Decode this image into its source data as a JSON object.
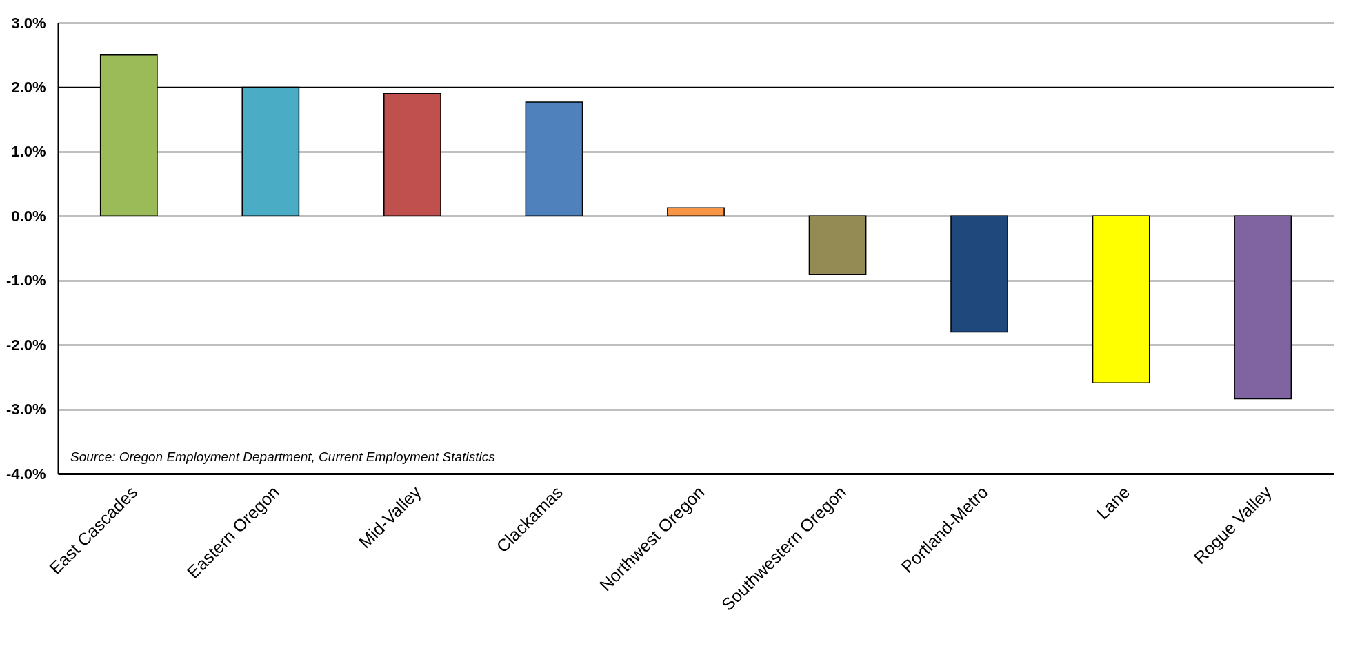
{
  "chart_data": {
    "type": "bar",
    "categories": [
      "East Cascades",
      "Eastern Oregon",
      "Mid-Valley",
      "Clackamas",
      "Northwest Oregon",
      "Southwestern Oregon",
      "Portland-Metro",
      "Lane",
      "Rogue Valley"
    ],
    "values": [
      2.5,
      2.0,
      1.9,
      1.77,
      0.13,
      -0.91,
      -1.8,
      -2.59,
      -2.84
    ],
    "colors": [
      "#9bbb59",
      "#4bacc6",
      "#c0504d",
      "#4f81bd",
      "#f79646",
      "#948a54",
      "#1f497d",
      "#ffff00",
      "#8064a2"
    ],
    "ylim": [
      -4,
      3
    ],
    "yticks": [
      {
        "value": -4,
        "label": "-4.0%"
      },
      {
        "value": -3,
        "label": "-3.0%"
      },
      {
        "value": -2,
        "label": "-2.0%"
      },
      {
        "value": -1,
        "label": "-1.0%"
      },
      {
        "value": 0,
        "label": "0.0%"
      },
      {
        "value": 1,
        "label": "1.0%"
      },
      {
        "value": 2,
        "label": "2.0%"
      },
      {
        "value": 3,
        "label": "3.0%"
      }
    ],
    "grid": "y",
    "annotations": [
      "Source: Oregon Employment Department, Current Employment Statistics"
    ]
  }
}
